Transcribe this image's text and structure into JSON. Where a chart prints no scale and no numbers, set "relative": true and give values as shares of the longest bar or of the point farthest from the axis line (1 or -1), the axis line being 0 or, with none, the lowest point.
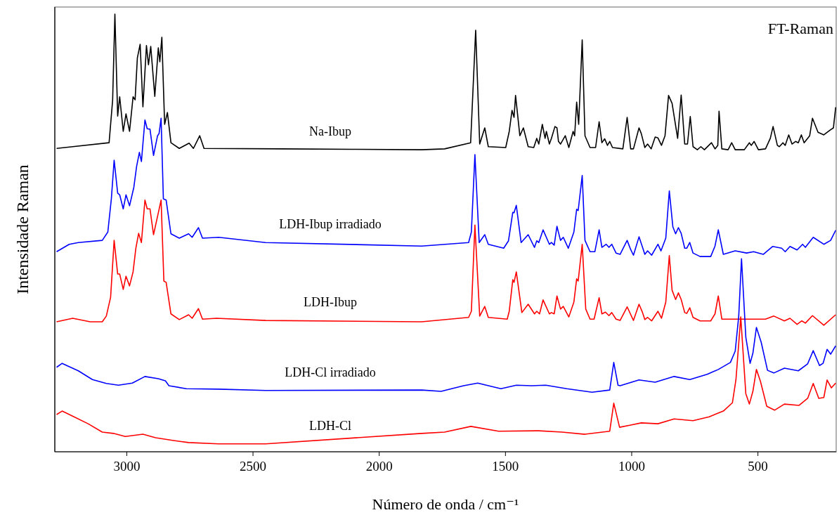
{
  "chart_data": {
    "type": "line",
    "relative": true,
    "xlabel": "Número de onda / cm⁻¹",
    "ylabel": "Intensidade Raman",
    "annotations": [
      "FT-Raman"
    ],
    "xlim": [
      3285,
      190
    ],
    "xticks": [
      3000,
      2500,
      2000,
      1500,
      1000,
      500
    ],
    "grid": false,
    "marker": "none",
    "line_style": "solid",
    "series": [
      {
        "name": "Na-Ibup",
        "color": "#000000",
        "x": [
          3278,
          3214,
          3070,
          3056,
          3047,
          3036,
          3028,
          3014,
          3003,
          2989,
          2975,
          2967,
          2958,
          2947,
          2936,
          2922,
          2914,
          2905,
          2889,
          2875,
          2869,
          2861,
          2850,
          2839,
          2825,
          2792,
          2753,
          2736,
          2711,
          2694,
          2388,
          2110,
          1832,
          1741,
          1638,
          1618,
          1602,
          1582,
          1568,
          1499,
          1485,
          1474,
          1466,
          1460,
          1443,
          1429,
          1410,
          1388,
          1376,
          1368,
          1354,
          1343,
          1338,
          1326,
          1318,
          1304,
          1296,
          1290,
          1282,
          1263,
          1249,
          1232,
          1226,
          1218,
          1210,
          1196,
          1185,
          1165,
          1143,
          1129,
          1118,
          1107,
          1096,
          1087,
          1076,
          1035,
          1018,
          1004,
          993,
          971,
          962,
          948,
          937,
          923,
          907,
          896,
          882,
          868,
          854,
          840,
          818,
          804,
          790,
          779,
          768,
          757,
          740,
          726,
          712,
          684,
          670,
          659,
          654,
          643,
          618,
          604,
          590,
          554,
          534,
          526,
          515,
          498,
          470,
          451,
          440,
          423,
          415,
          401,
          392,
          378,
          365,
          351,
          340,
          328,
          317,
          295,
          284,
          262,
          239,
          214,
          201,
          192
        ],
        "values": [
          0.693,
          0.697,
          0.706,
          0.803,
          1.0,
          0.767,
          0.811,
          0.732,
          0.772,
          0.732,
          0.811,
          0.804,
          0.9,
          0.931,
          0.788,
          0.928,
          0.884,
          0.926,
          0.812,
          0.923,
          0.891,
          0.947,
          0.748,
          0.775,
          0.706,
          0.693,
          0.705,
          0.693,
          0.722,
          0.693,
          0.692,
          0.691,
          0.69,
          0.692,
          0.706,
          0.963,
          0.703,
          0.74,
          0.697,
          0.695,
          0.732,
          0.78,
          0.764,
          0.814,
          0.722,
          0.74,
          0.697,
          0.695,
          0.716,
          0.703,
          0.748,
          0.716,
          0.732,
          0.703,
          0.716,
          0.743,
          0.74,
          0.709,
          0.703,
          0.722,
          0.695,
          0.732,
          0.722,
          0.799,
          0.748,
          0.941,
          0.722,
          0.695,
          0.695,
          0.754,
          0.706,
          0.715,
          0.7,
          0.709,
          0.695,
          0.692,
          0.764,
          0.692,
          0.692,
          0.74,
          0.727,
          0.695,
          0.703,
          0.692,
          0.719,
          0.717,
          0.7,
          0.722,
          0.814,
          0.796,
          0.716,
          0.815,
          0.703,
          0.703,
          0.766,
          0.697,
          0.69,
          0.697,
          0.69,
          0.706,
          0.692,
          0.7,
          0.778,
          0.692,
          0.69,
          0.706,
          0.69,
          0.69,
          0.706,
          0.7,
          0.709,
          0.69,
          0.692,
          0.716,
          0.743,
          0.7,
          0.697,
          0.706,
          0.7,
          0.724,
          0.703,
          0.709,
          0.706,
          0.724,
          0.706,
          0.722,
          0.762,
          0.73,
          0.724,
          0.735,
          0.74,
          0.787
        ]
      },
      {
        "name": "LDH-Ibup irradiado",
        "color": "#0000ff",
        "x": [
          3278,
          3228,
          3192,
          3097,
          3075,
          3061,
          3050,
          3036,
          3028,
          3014,
          3003,
          2989,
          2972,
          2961,
          2950,
          2942,
          2928,
          2919,
          2908,
          2894,
          2878,
          2872,
          2864,
          2855,
          2844,
          2825,
          2792,
          2755,
          2741,
          2716,
          2700,
          2636,
          2450,
          1832,
          1646,
          1635,
          1621,
          1604,
          1582,
          1568,
          1507,
          1488,
          1471,
          1466,
          1457,
          1438,
          1410,
          1385,
          1376,
          1368,
          1351,
          1326,
          1318,
          1307,
          1296,
          1282,
          1271,
          1251,
          1229,
          1218,
          1212,
          1196,
          1185,
          1165,
          1146,
          1129,
          1118,
          1101,
          1090,
          1079,
          1062,
          1046,
          1018,
          1004,
          993,
          971,
          957,
          948,
          937,
          921,
          896,
          884,
          865,
          851,
          837,
          826,
          815,
          804,
          790,
          782,
          770,
          757,
          729,
          687,
          670,
          657,
          637,
          590,
          545,
          517,
          479,
          442,
          406,
          392,
          373,
          345,
          323,
          312,
          281,
          239,
          212,
          192
        ],
        "values": [
          0.457,
          0.474,
          0.478,
          0.483,
          0.502,
          0.578,
          0.666,
          0.591,
          0.587,
          0.555,
          0.587,
          0.562,
          0.604,
          0.652,
          0.684,
          0.663,
          0.758,
          0.738,
          0.737,
          0.677,
          0.722,
          0.727,
          0.762,
          0.578,
          0.575,
          0.498,
          0.488,
          0.498,
          0.49,
          0.512,
          0.488,
          0.49,
          0.478,
          0.47,
          0.478,
          0.502,
          0.679,
          0.478,
          0.496,
          0.474,
          0.465,
          0.482,
          0.547,
          0.546,
          0.563,
          0.478,
          0.496,
          0.467,
          0.482,
          0.478,
          0.507,
          0.474,
          0.478,
          0.472,
          0.515,
          0.483,
          0.49,
          0.465,
          0.502,
          0.554,
          0.551,
          0.631,
          0.483,
          0.457,
          0.457,
          0.507,
          0.467,
          0.474,
          0.467,
          0.474,
          0.454,
          0.451,
          0.483,
          0.462,
          0.449,
          0.491,
          0.467,
          0.451,
          0.459,
          0.449,
          0.474,
          0.459,
          0.488,
          0.596,
          0.514,
          0.498,
          0.512,
          0.499,
          0.465,
          0.465,
          0.478,
          0.454,
          0.446,
          0.446,
          0.47,
          0.507,
          0.451,
          0.459,
          0.454,
          0.457,
          0.451,
          0.469,
          0.465,
          0.457,
          0.469,
          0.461,
          0.474,
          0.467,
          0.49,
          0.474,
          0.483,
          0.506
        ]
      },
      {
        "name": "LDH-Ibup",
        "color": "#ff0000",
        "x": [
          3278,
          3214,
          3145,
          3097,
          3081,
          3064,
          3050,
          3036,
          3028,
          3014,
          3003,
          2989,
          2975,
          2964,
          2953,
          2942,
          2928,
          2919,
          2908,
          2894,
          2878,
          2864,
          2853,
          2844,
          2825,
          2792,
          2755,
          2741,
          2716,
          2700,
          2644,
          2450,
          1832,
          1646,
          1635,
          1621,
          1602,
          1582,
          1568,
          1493,
          1485,
          1471,
          1466,
          1457,
          1435,
          1410,
          1385,
          1376,
          1365,
          1351,
          1326,
          1318,
          1307,
          1296,
          1282,
          1271,
          1249,
          1229,
          1218,
          1212,
          1196,
          1182,
          1165,
          1149,
          1129,
          1118,
          1104,
          1090,
          1079,
          1062,
          1046,
          1018,
          993,
          971,
          957,
          948,
          937,
          921,
          896,
          882,
          865,
          851,
          840,
          826,
          815,
          804,
          790,
          782,
          770,
          757,
          729,
          687,
          670,
          657,
          643,
          590,
          554,
          517,
          470,
          437,
          395,
          373,
          345,
          326,
          312,
          284,
          239,
          192
        ],
        "values": [
          0.297,
          0.305,
          0.297,
          0.297,
          0.31,
          0.353,
          0.483,
          0.406,
          0.406,
          0.371,
          0.401,
          0.379,
          0.411,
          0.465,
          0.499,
          0.478,
          0.575,
          0.555,
          0.555,
          0.496,
          0.538,
          0.575,
          0.39,
          0.387,
          0.315,
          0.302,
          0.313,
          0.305,
          0.327,
          0.303,
          0.305,
          0.3,
          0.297,
          0.307,
          0.321,
          0.518,
          0.31,
          0.332,
          0.307,
          0.303,
          0.321,
          0.393,
          0.387,
          0.411,
          0.318,
          0.337,
          0.315,
          0.321,
          0.315,
          0.347,
          0.315,
          0.318,
          0.315,
          0.356,
          0.326,
          0.332,
          0.308,
          0.342,
          0.395,
          0.39,
          0.474,
          0.326,
          0.303,
          0.303,
          0.352,
          0.315,
          0.319,
          0.311,
          0.318,
          0.303,
          0.3,
          0.331,
          0.3,
          0.337,
          0.318,
          0.302,
          0.307,
          0.299,
          0.321,
          0.305,
          0.342,
          0.448,
          0.369,
          0.348,
          0.363,
          0.348,
          0.318,
          0.316,
          0.329,
          0.307,
          0.299,
          0.299,
          0.315,
          0.356,
          0.303,
          0.303,
          0.303,
          0.303,
          0.303,
          0.31,
          0.299,
          0.305,
          0.291,
          0.299,
          0.294,
          0.311,
          0.289,
          0.313
        ]
      },
      {
        "name": "LDH-Cl irradiado",
        "color": "#0000ff",
        "x": [
          3278,
          3256,
          3192,
          3136,
          3081,
          3033,
          2978,
          2928,
          2875,
          2847,
          2833,
          2764,
          2636,
          2450,
          1832,
          1755,
          1666,
          1610,
          1518,
          1457,
          1396,
          1340,
          1257,
          1157,
          1087,
          1071,
          1054,
          1046,
          971,
          907,
          832,
          770,
          701,
          657,
          609,
          590,
          576,
          565,
          548,
          531,
          520,
          506,
          487,
          462,
          437,
          395,
          340,
          303,
          281,
          256,
          242,
          226,
          212,
          192
        ],
        "values": [
          0.193,
          0.202,
          0.185,
          0.165,
          0.156,
          0.152,
          0.157,
          0.172,
          0.167,
          0.162,
          0.151,
          0.144,
          0.143,
          0.14,
          0.141,
          0.138,
          0.151,
          0.157,
          0.144,
          0.152,
          0.151,
          0.152,
          0.144,
          0.136,
          0.141,
          0.204,
          0.152,
          0.151,
          0.164,
          0.159,
          0.172,
          0.165,
          0.177,
          0.188,
          0.204,
          0.23,
          0.31,
          0.441,
          0.262,
          0.202,
          0.225,
          0.284,
          0.25,
          0.186,
          0.18,
          0.191,
          0.185,
          0.201,
          0.231,
          0.197,
          0.202,
          0.234,
          0.223,
          0.242
        ]
      },
      {
        "name": "LDH-Cl",
        "color": "#ff0000",
        "x": [
          3278,
          3256,
          3209,
          3153,
          3097,
          3053,
          3006,
          2936,
          2886,
          2819,
          2755,
          2636,
          2450,
          1832,
          1741,
          1637,
          1527,
          1368,
          1276,
          1185,
          1087,
          1071,
          1048,
          1004,
          962,
          896,
          832,
          757,
          693,
          637,
          601,
          587,
          568,
          548,
          534,
          520,
          506,
          490,
          465,
          434,
          395,
          337,
          303,
          281,
          259,
          239,
          226,
          209,
          192
        ],
        "values": [
          0.085,
          0.093,
          0.08,
          0.064,
          0.045,
          0.042,
          0.035,
          0.04,
          0.032,
          0.026,
          0.021,
          0.018,
          0.018,
          0.042,
          0.045,
          0.058,
          0.047,
          0.048,
          0.045,
          0.04,
          0.047,
          0.111,
          0.056,
          0.061,
          0.066,
          0.064,
          0.075,
          0.071,
          0.08,
          0.093,
          0.112,
          0.165,
          0.308,
          0.133,
          0.109,
          0.138,
          0.188,
          0.161,
          0.104,
          0.095,
          0.109,
          0.106,
          0.122,
          0.156,
          0.122,
          0.124,
          0.164,
          0.146,
          0.157
        ]
      }
    ]
  }
}
